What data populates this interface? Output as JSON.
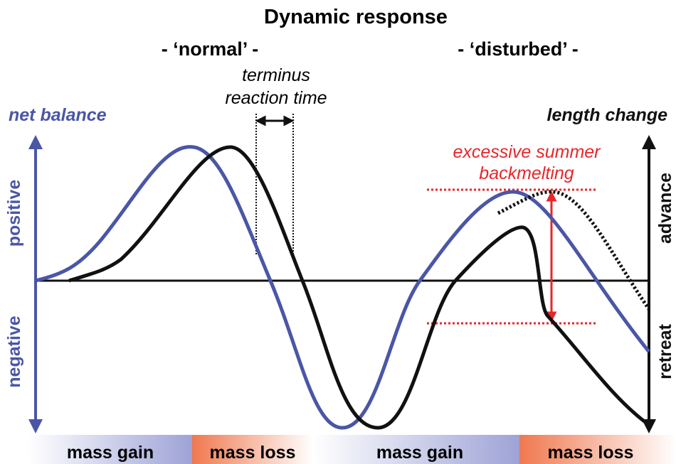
{
  "title": "Dynamic response",
  "phases": {
    "normal": "- ‘normal’ -",
    "disturbed": "- ‘disturbed’ -"
  },
  "annotations": {
    "reaction_time": [
      "terminus",
      "reaction time"
    ],
    "backmelting": [
      "excessive summer",
      "backmelting"
    ]
  },
  "left_axis": {
    "title": "net balance",
    "positive": "positive",
    "negative": "negative"
  },
  "right_axis": {
    "title": "length change",
    "advance": "advance",
    "retreat": "retreat"
  },
  "bottom_bands": [
    "mass gain",
    "mass loss",
    "mass gain",
    "mass loss"
  ]
}
